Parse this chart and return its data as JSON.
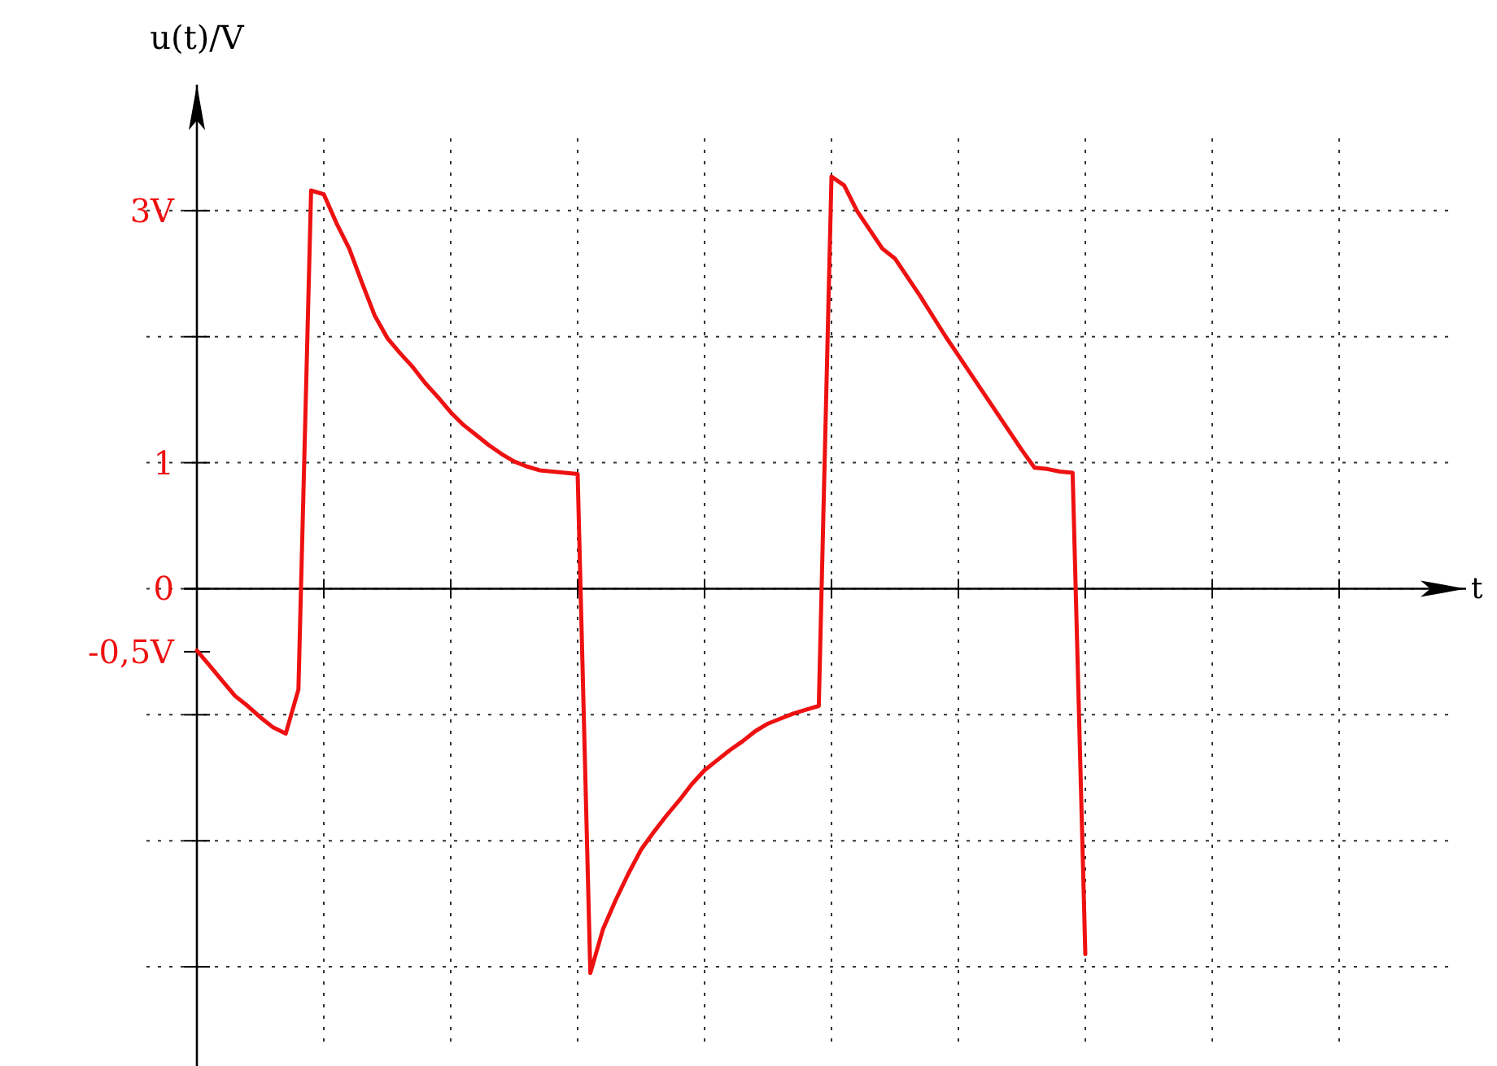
{
  "chart_data": {
    "type": "line",
    "ylabel": "u(t)/V",
    "xlabel": "t",
    "ylim": [
      -3.8,
      4
    ],
    "yticks": [
      {
        "value": -3,
        "label": null
      },
      {
        "value": -2,
        "label": null
      },
      {
        "value": -1,
        "label": null
      },
      {
        "value": -0.5,
        "label": "-0,5V"
      },
      {
        "value": 0,
        "label": "0"
      },
      {
        "value": 1,
        "label": "1"
      },
      {
        "value": 2,
        "label": null
      },
      {
        "value": 3,
        "label": "3V"
      }
    ],
    "grid": true,
    "marker": "none",
    "line_style": "solid",
    "categories": [
      null,
      null,
      null,
      null,
      null,
      null,
      null,
      null,
      null,
      null,
      null,
      null,
      null,
      null,
      null,
      null,
      null,
      null,
      null,
      null,
      null,
      null,
      null,
      null,
      null,
      null,
      null,
      null,
      null,
      null,
      null,
      null,
      null,
      null,
      null,
      null,
      null,
      null,
      null,
      null,
      null,
      null,
      null,
      null,
      null,
      null,
      null,
      null,
      null,
      null,
      null,
      null,
      null,
      null,
      null,
      null,
      null,
      null,
      null,
      null,
      null,
      null,
      null,
      null,
      null,
      null,
      null,
      null,
      null,
      null,
      null,
      null,
      null,
      null,
      null,
      null,
      null,
      null,
      null,
      null,
      null,
      null,
      null,
      null,
      null,
      null,
      null,
      null,
      null,
      null,
      null,
      null,
      null,
      null,
      null,
      null,
      null,
      null,
      null,
      null,
      null
    ],
    "series": [
      {
        "color": "#ee1111",
        "values": [
          -0.49,
          -0.61,
          -0.73,
          -0.85,
          -0.93,
          -1.02,
          -1.1,
          -1.15,
          -0.8,
          3.16,
          3.13,
          2.9,
          2.7,
          2.43,
          2.17,
          1.99,
          1.87,
          1.76,
          1.63,
          1.52,
          1.4,
          1.3,
          1.22,
          1.14,
          1.07,
          1.01,
          0.97,
          0.94,
          0.93,
          0.92,
          0.91,
          -3.05,
          -2.7,
          -2.47,
          -2.26,
          -2.07,
          -1.93,
          -1.8,
          -1.68,
          -1.55,
          -1.44,
          -1.36,
          -1.28,
          -1.21,
          -1.13,
          -1.07,
          -1.03,
          -0.99,
          -0.96,
          -0.93,
          3.27,
          3.2,
          3.0,
          2.85,
          2.7,
          2.62,
          2.47,
          2.32,
          2.16,
          2.0,
          1.85,
          1.7,
          1.55,
          1.4,
          1.25,
          1.1,
          0.96,
          0.95,
          0.93,
          0.92,
          -2.9,
          null,
          null,
          null,
          null,
          null,
          null,
          null,
          null,
          null,
          null,
          null,
          null,
          null,
          null,
          null,
          null,
          null,
          null,
          null,
          null,
          null,
          null,
          null,
          null,
          null,
          null,
          null,
          null,
          null,
          null
        ]
      }
    ]
  }
}
